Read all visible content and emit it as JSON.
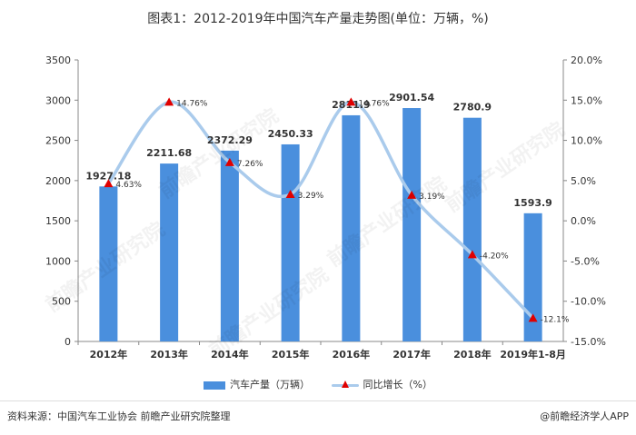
{
  "title": "图表1：2012-2019年中国汽车产量走势图(单位：万辆，%)",
  "source": "资料来源：中国汽车工业协会 前瞻产业研究院整理",
  "brand": "@前瞻经济学人APP",
  "watermark_text": "前瞻产业研究院",
  "colors": {
    "bar": "#4a8fdd",
    "line": "#aacbec",
    "marker": "#e00000",
    "axis": "#888888",
    "text": "#333333"
  },
  "legend": {
    "bar_label": "汽车产量（万辆）",
    "line_label": "同比增长（%）"
  },
  "chart_data": {
    "type": "bar",
    "categories": [
      "2012年",
      "2013年",
      "2014年",
      "2015年",
      "2016年",
      "2017年",
      "2018年",
      "2019年1-8月"
    ],
    "series": [
      {
        "name": "汽车产量（万辆）",
        "type": "bar",
        "axis": "left",
        "values": [
          1927.18,
          2211.68,
          2372.29,
          2450.33,
          2811.9,
          2901.54,
          2780.9,
          1593.9
        ],
        "labels": [
          "1927.18",
          "2211.68",
          "2372.29",
          "2450.33",
          "2811.9",
          "2901.54",
          "2780.9",
          "1593.9"
        ]
      },
      {
        "name": "同比增长（%）",
        "type": "line",
        "smooth": true,
        "axis": "right",
        "values": [
          4.63,
          14.76,
          7.26,
          3.29,
          14.76,
          3.19,
          -4.2,
          -12.1
        ],
        "labels": [
          "4.63%",
          "14.76%",
          "7.26%",
          "3.29%",
          "14.76%",
          "3.19%",
          "-4.20%",
          "-12.1%"
        ]
      }
    ],
    "y_left": {
      "min": 0,
      "max": 3500,
      "ticks": [
        0,
        500,
        1000,
        1500,
        2000,
        2500,
        3000,
        3500
      ],
      "tick_labels": [
        "0",
        "500",
        "1000",
        "1500",
        "2000",
        "2500",
        "3000",
        "3500"
      ]
    },
    "y_right": {
      "min": -15,
      "max": 20,
      "ticks": [
        -15,
        -10,
        -5,
        0,
        5,
        10,
        15,
        20
      ],
      "tick_labels": [
        "-15.0%",
        "-10.0%",
        "-5.0%",
        "0.0%",
        "5.0%",
        "10.0%",
        "15.0%",
        "20.0%"
      ]
    },
    "grid": false,
    "legend_position": "bottom"
  }
}
